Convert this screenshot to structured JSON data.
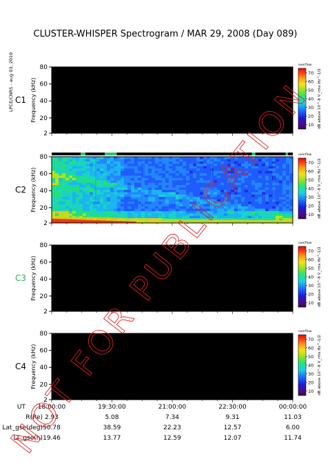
{
  "title": "CLUSTER-WHISPER Spectrogram / MAR 29, 2008 (Day 089)",
  "side_label": "LPCE/CNRS - aug 03, 2010",
  "watermark": "NOT FOR PUBLICATION",
  "chart_data": {
    "type": "heatmap",
    "ylabel": "Frequency (kHz)",
    "yticks": [
      2,
      20,
      40,
      60,
      80
    ],
    "ylim": [
      2,
      80
    ],
    "colorbar": {
      "label": "dB above 10^-8 V_rms Hz^-1/2",
      "top_label": "overflow",
      "ticks": [
        10,
        20,
        30,
        40,
        50,
        60,
        70
      ],
      "range": [
        5,
        75
      ]
    },
    "panels": [
      {
        "name": "C1",
        "color": "#000000",
        "has_data": false
      },
      {
        "name": "C2",
        "color": "#000000",
        "has_data": true
      },
      {
        "name": "C3",
        "color": "#1db954",
        "has_data": false
      },
      {
        "name": "C4",
        "color": "#000000",
        "has_data": false
      }
    ],
    "x_axis": {
      "row_labels": [
        "UT",
        "R(Re)",
        "Lat_gse(deg)",
        "LT_gse(h)"
      ],
      "ticks": [
        {
          "ut": "18:00:00",
          "r": "2.93",
          "lat": "50.78",
          "lt": "19.46"
        },
        {
          "ut": "19:30:00",
          "r": "5.08",
          "lat": "38.59",
          "lt": "13.77"
        },
        {
          "ut": "21:00:00",
          "r": "7.34",
          "lat": "22.23",
          "lt": "12.59"
        },
        {
          "ut": "22:30:00",
          "r": "9.31",
          "lat": "12.57",
          "lt": "12.07"
        },
        {
          "ut": "00:00:00",
          "r": "11.03",
          "lat": "6.00",
          "lt": "11.74"
        }
      ]
    }
  }
}
